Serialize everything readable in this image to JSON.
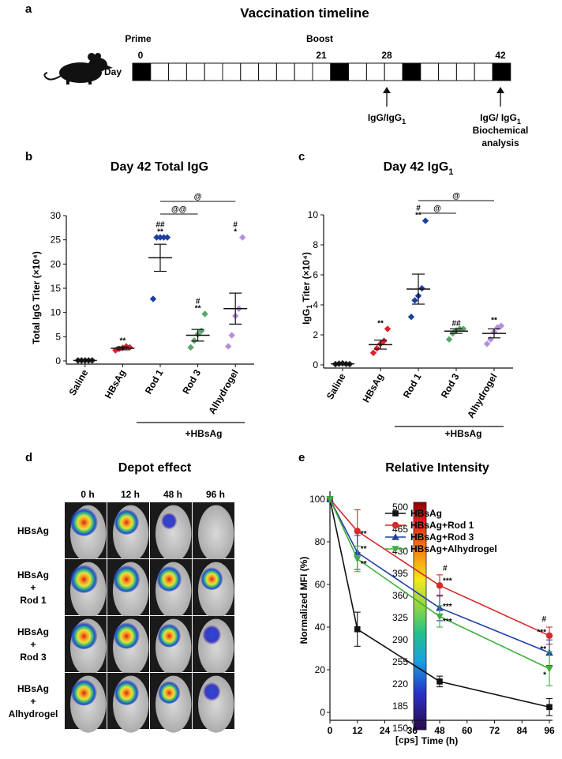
{
  "panels": {
    "a": "a",
    "b": "b",
    "c": "c",
    "d": "d",
    "e": "e"
  },
  "timeline": {
    "title": "Vaccination timeline",
    "day_label": "Day",
    "prime_label": "Prime",
    "boost_label": "Boost",
    "days_total": 21,
    "marked_days": [
      "0",
      "21",
      "28",
      "42"
    ],
    "ann_28": "IgG/IgG",
    "ann_42_line1": "IgG/ IgG",
    "ann_42_line2": "Biochemical",
    "ann_42_line3": "analysis",
    "sub1": "1"
  },
  "chart_data": [
    {
      "id": "total_igg",
      "type": "scatter",
      "title": "Day 42 Total IgG",
      "ylabel": "Total IgG Titer (×10⁴)",
      "ylim": [
        0,
        30
      ],
      "yticks": [
        "0",
        "5",
        "10",
        "15",
        "20",
        "25",
        "30"
      ],
      "categories": [
        "Saline",
        "HBsAg",
        "Rod 1",
        "Rod 3",
        "Alhydrogel"
      ],
      "colors": [
        "#1a1a1a",
        "#e0202a",
        "#1c3fa0",
        "#5aa66a",
        "#b48ee0"
      ],
      "points": [
        [
          0.1,
          0.1,
          0.1,
          0.1,
          0.1
        ],
        [
          2.2,
          2.5,
          2.7,
          3.0,
          2.8
        ],
        [
          12.8,
          25.5,
          25.5,
          25.5,
          25.5
        ],
        [
          2.8,
          4.2,
          5.5,
          6.2,
          9.7
        ],
        [
          3.0,
          5.3,
          9.3,
          10.8,
          25.5
        ]
      ],
      "means": [
        0.1,
        2.6,
        21.3,
        5.3,
        10.8
      ],
      "sem": [
        0.1,
        0.3,
        2.8,
        1.2,
        3.2
      ],
      "stars": [
        "",
        "**",
        "**",
        "**",
        "*"
      ],
      "hashes": [
        "",
        "",
        "##",
        "#",
        "#"
      ],
      "brackets": [
        {
          "from": 2,
          "to": 3,
          "label": "@@"
        },
        {
          "from": 2,
          "to": 4,
          "label": "@"
        }
      ],
      "group_label": "+HBsAg"
    },
    {
      "id": "igg1",
      "type": "scatter",
      "title": "Day 42 IgG",
      "title_sub": "1",
      "ylabel": "IgG Titer (×10⁴)",
      "ylabel_sub": "1",
      "ylim": [
        0,
        10
      ],
      "yticks": [
        "0",
        "2",
        "4",
        "6",
        "8",
        "10"
      ],
      "categories": [
        "Saline",
        "HBsAg",
        "Rod 1",
        "Rod 3",
        "Alhydrogel"
      ],
      "colors": [
        "#1a1a1a",
        "#e0202a",
        "#1c3fa0",
        "#5aa66a",
        "#b48ee0"
      ],
      "points": [
        [
          0.05,
          0.08,
          0.1,
          0.06,
          0.05
        ],
        [
          0.8,
          1.1,
          1.4,
          1.6,
          2.4
        ],
        [
          3.2,
          4.3,
          4.6,
          5.1,
          9.6
        ],
        [
          1.7,
          2.1,
          2.3,
          2.4,
          2.4
        ],
        [
          1.4,
          1.7,
          2.2,
          2.5,
          2.6
        ]
      ],
      "means": [
        0.07,
        1.35,
        5.05,
        2.25,
        2.1
      ],
      "sem": [
        0.05,
        0.3,
        1.0,
        0.15,
        0.3
      ],
      "stars": [
        "",
        "**",
        "**",
        "",
        "**"
      ],
      "hashes": [
        "",
        "",
        "#",
        "##",
        ""
      ],
      "brackets": [
        {
          "from": 2,
          "to": 3,
          "label": "@"
        },
        {
          "from": 2,
          "to": 4,
          "label": "@"
        }
      ],
      "group_label": "+HBsAg"
    },
    {
      "id": "relative_intensity",
      "type": "line",
      "title": "Relative Intensity",
      "xlabel": "Time (h)",
      "ylabel": "Normalized MFI (%)",
      "xlim": [
        0,
        96
      ],
      "ylim": [
        0,
        100
      ],
      "xticks": [
        "0",
        "12",
        "24",
        "36",
        "48",
        "60",
        "72",
        "84",
        "96"
      ],
      "yticks": [
        "0",
        "20",
        "40",
        "60",
        "80",
        "100"
      ],
      "x": [
        0,
        12,
        48,
        96
      ],
      "series": [
        {
          "name": "HBsAg",
          "color": "#111111",
          "marker": "square",
          "values": [
            100,
            39,
            14.5,
            2.5
          ],
          "err": [
            0,
            8,
            2.5,
            4
          ]
        },
        {
          "name": "HBsAg+Rod 1",
          "color": "#d42a2a",
          "marker": "circle",
          "values": [
            100,
            85,
            59.5,
            36
          ],
          "err": [
            0,
            10,
            5,
            4
          ]
        },
        {
          "name": "HBsAg+Rod 3",
          "color": "#1f3fa6",
          "marker": "triangle",
          "values": [
            100,
            75,
            49,
            28
          ],
          "err": [
            0,
            8,
            6,
            6
          ]
        },
        {
          "name": "HBsAg+Alhydrogel",
          "color": "#3fae3f",
          "marker": "triangle-down",
          "values": [
            100,
            72,
            45,
            20.5
          ],
          "err": [
            0,
            6,
            5,
            8
          ]
        }
      ],
      "annotations": [
        {
          "x": 12,
          "y": 84,
          "text": "**"
        },
        {
          "x": 12,
          "y": 77,
          "text": "**"
        },
        {
          "x": 12,
          "y": 70,
          "text": "**"
        },
        {
          "x": 48,
          "y": 68,
          "text": "#"
        },
        {
          "x": 48,
          "y": 62,
          "text": "***"
        },
        {
          "x": 48,
          "y": 50,
          "text": "***"
        },
        {
          "x": 48,
          "y": 43,
          "text": "***"
        },
        {
          "x": 96,
          "y": 44,
          "text": "#"
        },
        {
          "x": 96,
          "y": 38,
          "text": "***"
        },
        {
          "x": 96,
          "y": 30,
          "text": "**"
        },
        {
          "x": 96,
          "y": 18,
          "text": "*"
        }
      ]
    }
  ],
  "depot": {
    "title": "Depot effect",
    "time_labels": [
      "0 h",
      "12 h",
      "48 h",
      "96 h"
    ],
    "row_labels": [
      [
        "HBsAg"
      ],
      [
        "HBsAg",
        "+",
        "Rod 1"
      ],
      [
        "HBsAg",
        "+",
        "Rod 3"
      ],
      [
        "HBsAg",
        "+",
        "Alhydrogel"
      ]
    ],
    "scale_values": [
      "500",
      "465",
      "430",
      "395",
      "360",
      "325",
      "290",
      "255",
      "220",
      "185",
      "150"
    ],
    "unit": "[cps]",
    "signal": [
      [
        1.0,
        0.85,
        0.35,
        0.0
      ],
      [
        1.0,
        0.95,
        0.85,
        0.7
      ],
      [
        0.95,
        0.9,
        0.75,
        0.5
      ],
      [
        0.9,
        0.85,
        0.7,
        0.45
      ]
    ]
  }
}
